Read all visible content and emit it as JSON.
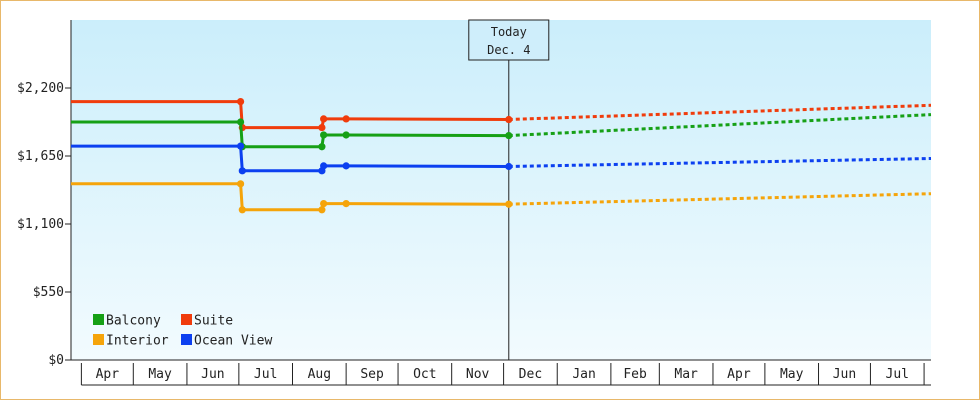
{
  "chart_data": {
    "type": "line",
    "title": "",
    "xlabel": "",
    "ylabel": "",
    "ylim": [
      0,
      2750
    ],
    "y_ticks": [
      0,
      550,
      1100,
      1650,
      2200
    ],
    "y_tick_labels": [
      "$0",
      "$550",
      "$1,100",
      "$1,650",
      "$2,200"
    ],
    "months": [
      "Apr",
      "May",
      "Jun",
      "Jul",
      "Aug",
      "Sep",
      "Oct",
      "Nov",
      "Dec",
      "Jan",
      "Feb",
      "Mar",
      "Apr",
      "May",
      "Jun",
      "Jul"
    ],
    "x_range": [
      "2024-03-26",
      "2025-08-05"
    ],
    "month_starts": [
      "2024-04-01",
      "2024-05-01",
      "2024-06-01",
      "2024-07-01",
      "2024-08-01",
      "2024-09-01",
      "2024-10-01",
      "2024-11-01",
      "2024-12-01",
      "2025-01-01",
      "2025-02-01",
      "2025-03-01",
      "2025-04-01",
      "2025-05-01",
      "2025-06-01",
      "2025-07-01",
      "2025-08-01"
    ],
    "today": {
      "line1": "Today",
      "line2": "Dec. 4",
      "date": "2024-12-04"
    },
    "legend": [
      {
        "name": "Balcony",
        "color": "#16a016"
      },
      {
        "name": "Suite",
        "color": "#f03c0c"
      },
      {
        "name": "Interior",
        "color": "#f5a40a"
      },
      {
        "name": "Ocean View",
        "color": "#0c40f0"
      }
    ],
    "series": [
      {
        "name": "Suite",
        "color": "#f03c0c",
        "points": [
          [
            "2024-03-26",
            2090
          ],
          [
            "2024-07-02",
            2090
          ],
          [
            "2024-07-03",
            1880
          ],
          [
            "2024-08-18",
            1880
          ],
          [
            "2024-08-19",
            1950
          ],
          [
            "2024-09-01",
            1950
          ],
          [
            "2024-12-04",
            1945
          ]
        ],
        "markers": [
          "2024-07-02",
          "2024-07-03",
          "2024-08-18",
          "2024-08-19",
          "2024-09-01",
          "2024-12-04"
        ],
        "forecast": [
          [
            "2024-12-04",
            1945
          ],
          [
            "2025-08-05",
            2060
          ]
        ]
      },
      {
        "name": "Balcony",
        "color": "#16a016",
        "points": [
          [
            "2024-03-26",
            1925
          ],
          [
            "2024-07-02",
            1925
          ],
          [
            "2024-07-03",
            1725
          ],
          [
            "2024-08-18",
            1725
          ],
          [
            "2024-08-19",
            1820
          ],
          [
            "2024-09-01",
            1820
          ],
          [
            "2024-12-04",
            1815
          ]
        ],
        "markers": [
          "2024-07-02",
          "2024-07-03",
          "2024-08-18",
          "2024-08-19",
          "2024-09-01",
          "2024-12-04"
        ],
        "forecast": [
          [
            "2024-12-04",
            1815
          ],
          [
            "2025-08-05",
            1985
          ]
        ]
      },
      {
        "name": "Ocean View",
        "color": "#0c40f0",
        "points": [
          [
            "2024-03-26",
            1730
          ],
          [
            "2024-07-02",
            1730
          ],
          [
            "2024-07-03",
            1530
          ],
          [
            "2024-08-18",
            1530
          ],
          [
            "2024-08-19",
            1570
          ],
          [
            "2024-09-01",
            1570
          ],
          [
            "2024-12-04",
            1565
          ]
        ],
        "markers": [
          "2024-07-02",
          "2024-07-03",
          "2024-08-18",
          "2024-08-19",
          "2024-09-01",
          "2024-12-04"
        ],
        "forecast": [
          [
            "2024-12-04",
            1565
          ],
          [
            "2025-08-05",
            1630
          ]
        ]
      },
      {
        "name": "Interior",
        "color": "#f5a40a",
        "points": [
          [
            "2024-03-26",
            1425
          ],
          [
            "2024-07-02",
            1425
          ],
          [
            "2024-07-03",
            1215
          ],
          [
            "2024-08-18",
            1215
          ],
          [
            "2024-08-19",
            1265
          ],
          [
            "2024-09-01",
            1265
          ],
          [
            "2024-12-04",
            1260
          ]
        ],
        "markers": [
          "2024-07-02",
          "2024-07-03",
          "2024-08-18",
          "2024-08-19",
          "2024-09-01",
          "2024-12-04"
        ],
        "forecast": [
          [
            "2024-12-04",
            1260
          ],
          [
            "2025-08-05",
            1345
          ]
        ]
      }
    ],
    "grid": false,
    "legend_position": "bottom-left"
  }
}
